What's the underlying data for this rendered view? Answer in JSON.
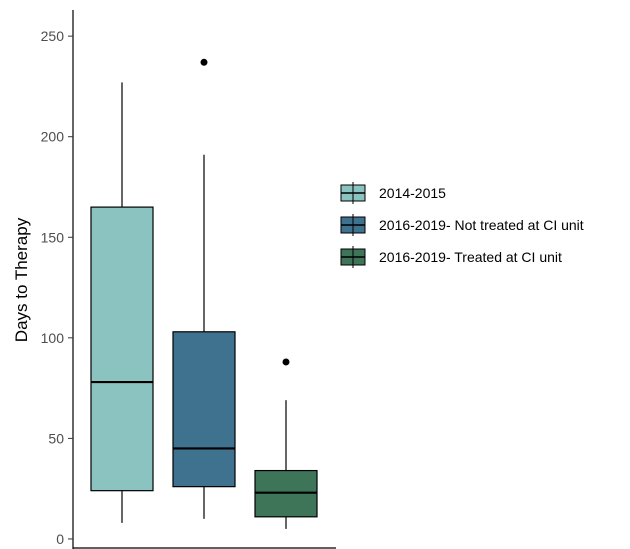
{
  "chart_data": {
    "type": "boxplot",
    "title": "",
    "xlabel": "",
    "ylabel": "Days to Therapy",
    "ylim": [
      -5,
      263
    ],
    "yticks": [
      0,
      50,
      100,
      150,
      200,
      250
    ],
    "grid": false,
    "legend_position": "right",
    "series": [
      {
        "name": "2014-2015",
        "color": "#8bc3c0",
        "min": 8,
        "q1": 24,
        "median": 78,
        "q3": 165,
        "max": 227,
        "outliers": []
      },
      {
        "name": "2016-2019- Not treated at CI unit",
        "color": "#3f728f",
        "min": 10,
        "q1": 26,
        "median": 45,
        "q3": 103,
        "max": 191,
        "outliers": [
          237
        ]
      },
      {
        "name": "2016-2019- Treated at CI unit",
        "color": "#3e7558",
        "min": 5,
        "q1": 11,
        "median": 23,
        "q3": 34,
        "max": 69,
        "outliers": [
          88
        ]
      }
    ]
  }
}
